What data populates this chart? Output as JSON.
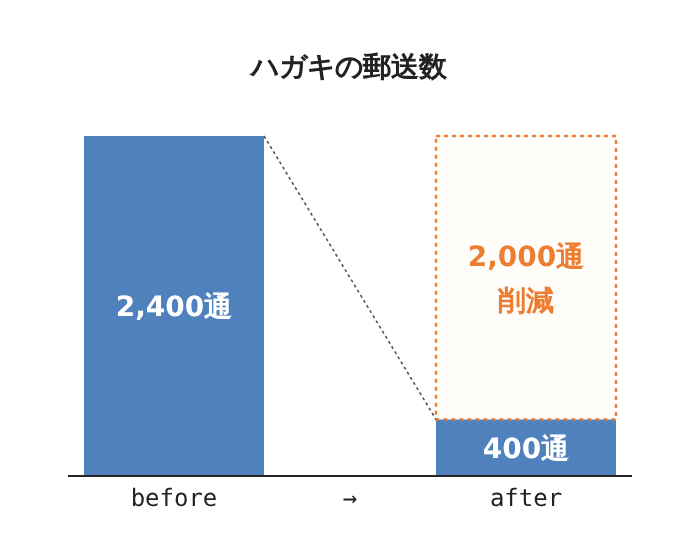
{
  "chart_data": {
    "type": "bar",
    "title": "ハガキの郵送数",
    "categories": [
      "before",
      "→",
      "after"
    ],
    "stacked": true,
    "series": [
      {
        "color": "#4f81bd",
        "values": [
          2400,
          null,
          400
        ],
        "value_labels": [
          "2,400通",
          null,
          "400通"
        ]
      },
      {
        "color": "#ed7d31",
        "values": [
          null,
          null,
          2000
        ],
        "value_labels": [
          null,
          null,
          "2,000通削減"
        ],
        "line_style": "dotted"
      }
    ]
  }
}
